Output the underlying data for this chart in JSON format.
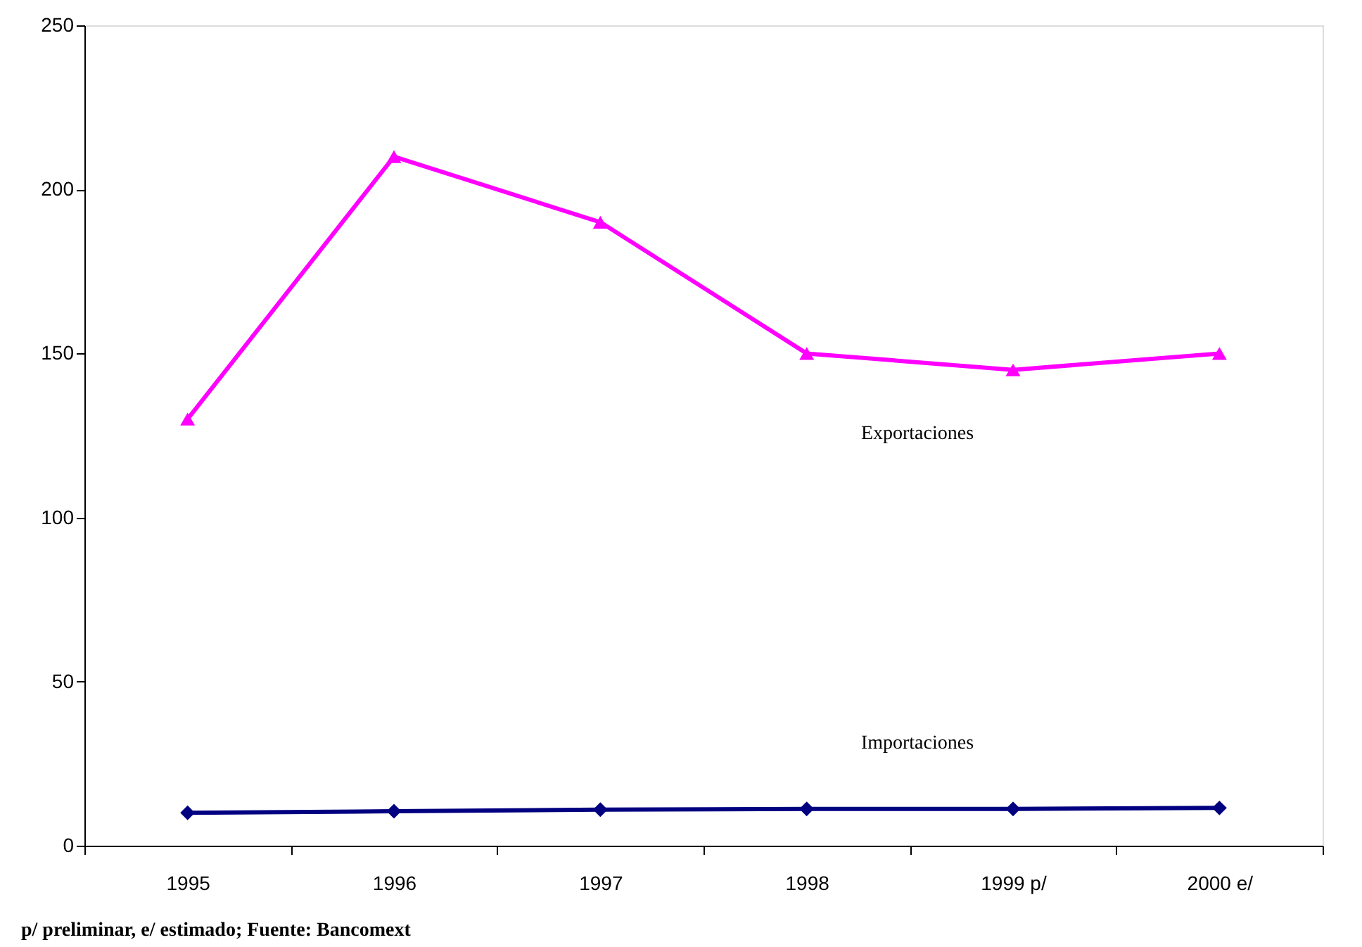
{
  "chart_data": {
    "type": "line",
    "categories": [
      "1995",
      "1996",
      "1997",
      "1998",
      "1999 p/",
      "2000 e/"
    ],
    "series": [
      {
        "name": "Exportaciones",
        "color": "#ff00ff",
        "marker": "triangle",
        "values": [
          130,
          210,
          190,
          150,
          145,
          150
        ]
      },
      {
        "name": "Importaciones",
        "color": "#000080",
        "marker": "diamond",
        "values": [
          10,
          10.5,
          11,
          11.2,
          11.2,
          11.5
        ]
      }
    ],
    "ylim": [
      0,
      250
    ],
    "yticks": [
      0,
      50,
      100,
      150,
      200,
      250
    ],
    "annotations": [
      "p/ preliminar, e/ estimado; Fuente: Bancomext"
    ]
  }
}
